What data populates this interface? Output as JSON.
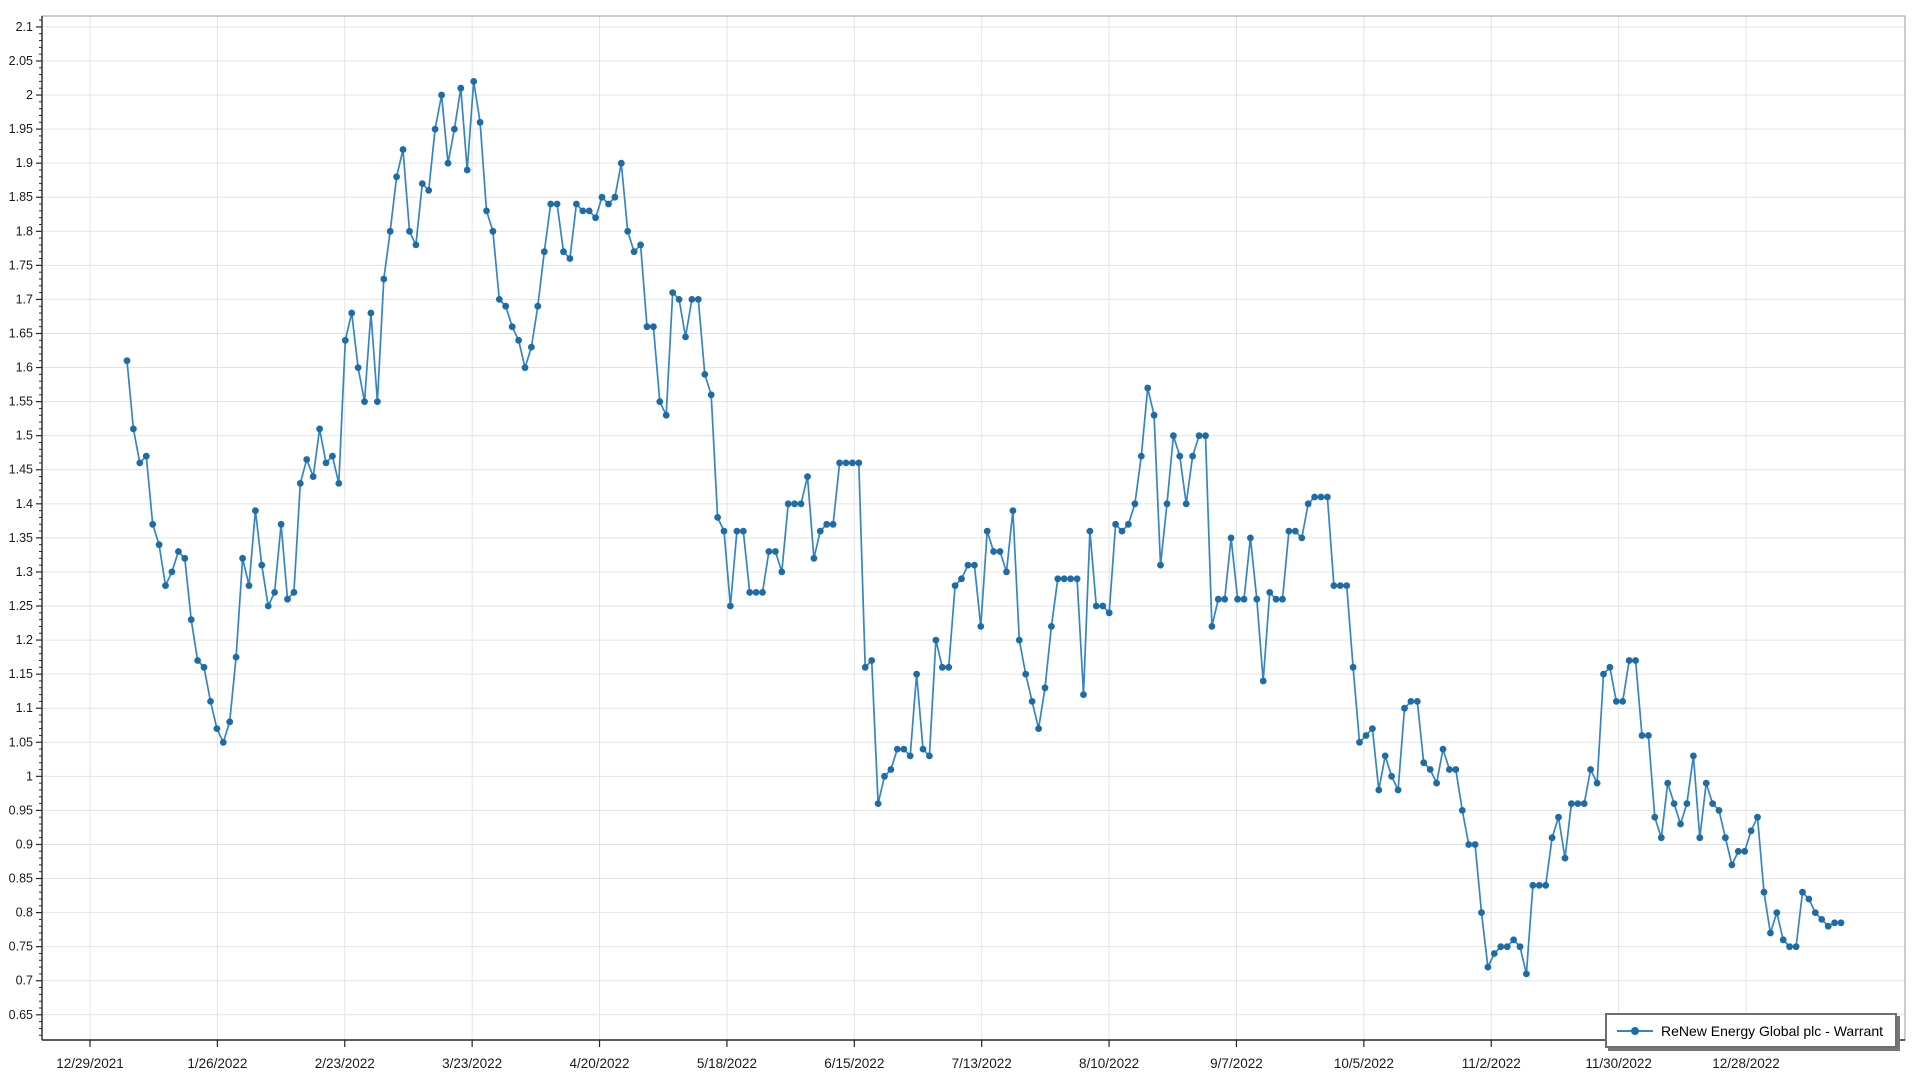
{
  "page": {
    "background": "#ffffff"
  },
  "chart_data": {
    "type": "line",
    "title": "",
    "legend": {
      "label": "ReNew Energy Global plc - Warrant",
      "position": "bottom-right"
    },
    "grid": true,
    "x_tick_labels": [
      "12/29/2021",
      "1/26/2022",
      "2/23/2022",
      "3/23/2022",
      "4/20/2022",
      "5/18/2022",
      "6/15/2022",
      "7/13/2022",
      "8/10/2022",
      "9/7/2022",
      "10/5/2022",
      "11/2/2022",
      "11/30/2022",
      "12/28/2022"
    ],
    "y_axis": {
      "label_min": 0.65,
      "label_max": 2.1,
      "step": 0.05,
      "minor_step": 0.01,
      "render_min": 0.613,
      "render_max": 2.116
    },
    "series": [
      {
        "name": "ReNew Energy Global plc - Warrant",
        "values": [
          1.61,
          1.51,
          1.46,
          1.47,
          1.37,
          1.34,
          1.28,
          1.3,
          1.33,
          1.32,
          1.23,
          1.17,
          1.16,
          1.11,
          1.07,
          1.05,
          1.08,
          1.175,
          1.32,
          1.28,
          1.39,
          1.31,
          1.25,
          1.27,
          1.37,
          1.26,
          1.27,
          1.43,
          1.465,
          1.44,
          1.51,
          1.46,
          1.47,
          1.43,
          1.64,
          1.68,
          1.6,
          1.55,
          1.68,
          1.55,
          1.73,
          1.8,
          1.88,
          1.92,
          1.8,
          1.78,
          1.87,
          1.86,
          1.95,
          2.0,
          1.9,
          1.95,
          2.01,
          1.89,
          2.02,
          1.96,
          1.83,
          1.8,
          1.7,
          1.69,
          1.66,
          1.64,
          1.6,
          1.63,
          1.69,
          1.77,
          1.84,
          1.84,
          1.77,
          1.76,
          1.84,
          1.83,
          1.83,
          1.82,
          1.85,
          1.84,
          1.85,
          1.9,
          1.8,
          1.77,
          1.78,
          1.66,
          1.66,
          1.55,
          1.53,
          1.71,
          1.7,
          1.645,
          1.7,
          1.7,
          1.59,
          1.56,
          1.38,
          1.36,
          1.25,
          1.36,
          1.36,
          1.27,
          1.27,
          1.27,
          1.33,
          1.33,
          1.3,
          1.4,
          1.4,
          1.4,
          1.44,
          1.32,
          1.36,
          1.37,
          1.37,
          1.46,
          1.46,
          1.46,
          1.46,
          1.16,
          1.17,
          0.96,
          1.0,
          1.01,
          1.04,
          1.04,
          1.03,
          1.15,
          1.04,
          1.03,
          1.2,
          1.16,
          1.16,
          1.28,
          1.29,
          1.31,
          1.31,
          1.22,
          1.36,
          1.33,
          1.33,
          1.3,
          1.39,
          1.2,
          1.15,
          1.11,
          1.07,
          1.13,
          1.22,
          1.29,
          1.29,
          1.29,
          1.29,
          1.12,
          1.36,
          1.25,
          1.25,
          1.24,
          1.37,
          1.36,
          1.37,
          1.4,
          1.47,
          1.57,
          1.53,
          1.31,
          1.4,
          1.5,
          1.47,
          1.4,
          1.47,
          1.5,
          1.5,
          1.22,
          1.26,
          1.26,
          1.35,
          1.26,
          1.26,
          1.35,
          1.26,
          1.14,
          1.27,
          1.26,
          1.26,
          1.36,
          1.36,
          1.35,
          1.4,
          1.41,
          1.41,
          1.41,
          1.28,
          1.28,
          1.28,
          1.16,
          1.05,
          1.06,
          1.07,
          0.98,
          1.03,
          1.0,
          0.98,
          1.1,
          1.11,
          1.11,
          1.02,
          1.01,
          0.99,
          1.04,
          1.01,
          1.01,
          0.95,
          0.9,
          0.9,
          0.8,
          0.72,
          0.74,
          0.75,
          0.75,
          0.76,
          0.75,
          0.71,
          0.84,
          0.84,
          0.84,
          0.91,
          0.94,
          0.88,
          0.96,
          0.96,
          0.96,
          1.01,
          0.99,
          1.15,
          1.16,
          1.11,
          1.11,
          1.17,
          1.17,
          1.06,
          1.06,
          0.94,
          0.91,
          0.99,
          0.96,
          0.93,
          0.96,
          1.03,
          0.91,
          0.99,
          0.96,
          0.95,
          0.91,
          0.87,
          0.89,
          0.89,
          0.92,
          0.94,
          0.83,
          0.77,
          0.8,
          0.76,
          0.75,
          0.75,
          0.83,
          0.82,
          0.8,
          0.79,
          0.78,
          0.785,
          0.785
        ]
      }
    ],
    "colors": {
      "line": "#3585c5",
      "marker": "#1d6ca6",
      "grid": "#e3e3e3",
      "axis": "#262626",
      "plot_border": "#9b9b9b",
      "label": "#1a1a1a",
      "legend_border": "#6e6e6e",
      "background": "#ffffff"
    }
  }
}
